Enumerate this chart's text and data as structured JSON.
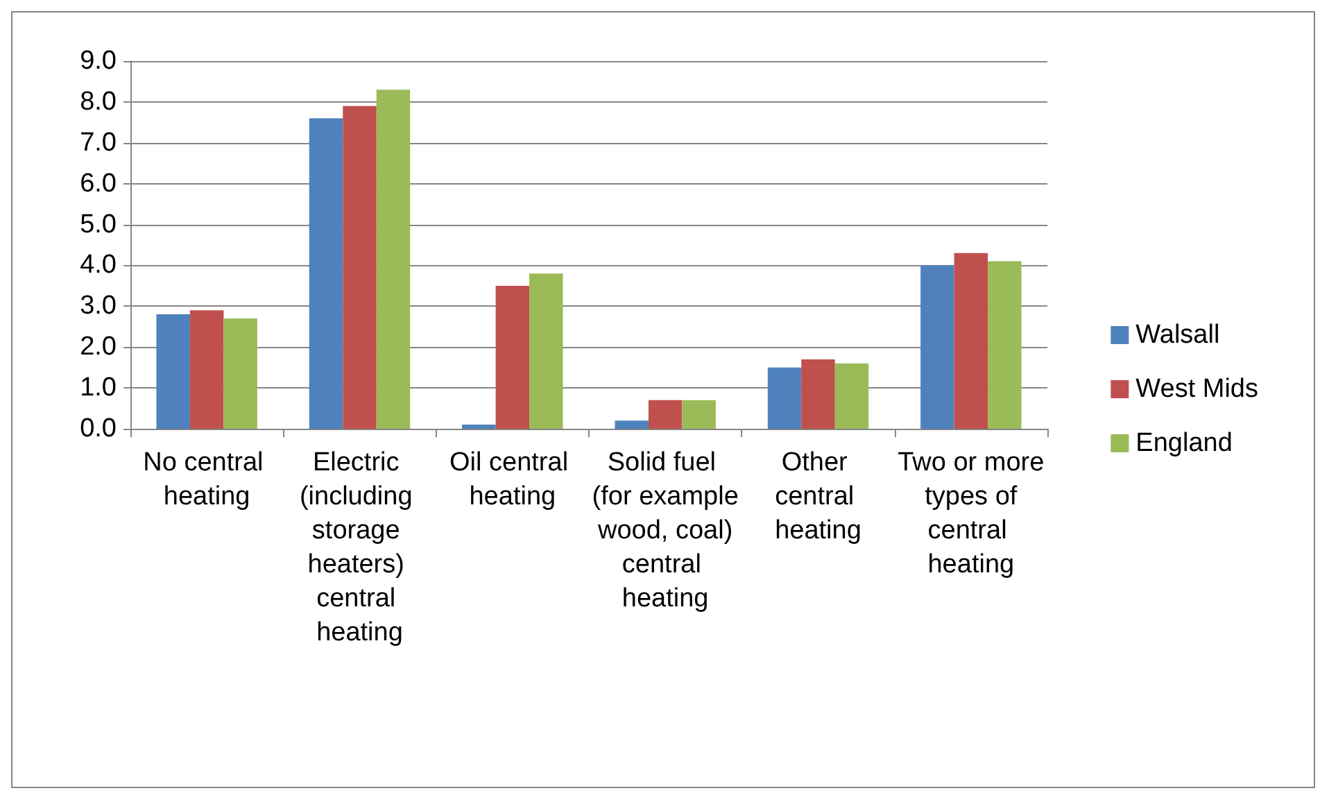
{
  "chart_data": {
    "type": "bar",
    "categories": [
      "No central heating",
      "Electric (including storage heaters) central heating",
      "Oil central heating",
      "Solid fuel (for example wood, coal) central heating",
      "Other central heating",
      "Two or more types of central heating"
    ],
    "series": [
      {
        "name": "Walsall",
        "color": "#4f81bd",
        "values": [
          2.8,
          7.6,
          0.1,
          0.2,
          1.5,
          4.0
        ]
      },
      {
        "name": "West Mids",
        "color": "#c0504d",
        "values": [
          2.9,
          7.9,
          3.5,
          0.7,
          1.7,
          4.3
        ]
      },
      {
        "name": "England",
        "color": "#9bbb59",
        "values": [
          2.7,
          8.3,
          3.8,
          0.7,
          1.6,
          4.1
        ]
      }
    ],
    "ylim": [
      0,
      9
    ],
    "yticks": [
      {
        "value": 0,
        "label": "0.0"
      },
      {
        "value": 1,
        "label": "1.0"
      },
      {
        "value": 2,
        "label": "2.0"
      },
      {
        "value": 3,
        "label": "3.0"
      },
      {
        "value": 4,
        "label": "4.0"
      },
      {
        "value": 5,
        "label": "5.0"
      },
      {
        "value": 6,
        "label": "6.0"
      },
      {
        "value": 7,
        "label": "7.0"
      },
      {
        "value": 8,
        "label": "8.0"
      },
      {
        "value": 9,
        "label": "9.0"
      }
    ],
    "grid": "y",
    "legend": "right"
  }
}
